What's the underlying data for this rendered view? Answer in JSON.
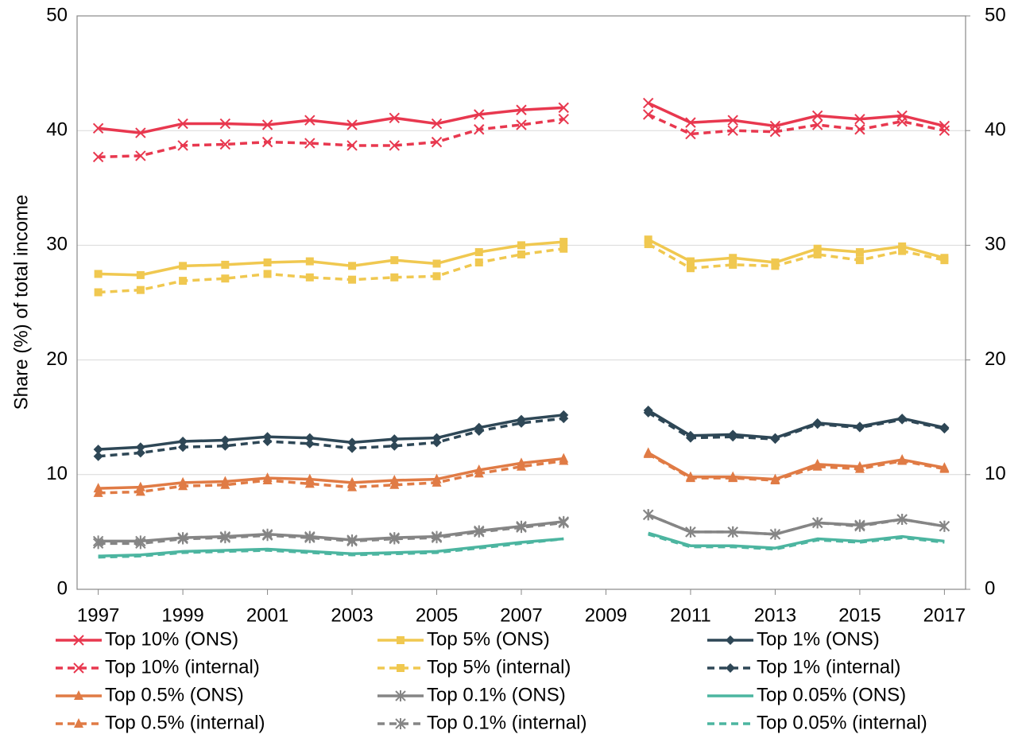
{
  "chart_data": {
    "type": "line",
    "y_label": "Share (%) of total income",
    "x": [
      1997,
      1998,
      1999,
      2000,
      2001,
      2002,
      2003,
      2004,
      2005,
      2006,
      2007,
      2008,
      2009,
      2010,
      2011,
      2012,
      2013,
      2014,
      2015,
      2016,
      2017
    ],
    "xlim": [
      1996.5,
      2017.5
    ],
    "xticks": [
      1997,
      1999,
      2001,
      2003,
      2005,
      2007,
      2009,
      2011,
      2013,
      2015,
      2017
    ],
    "ylim": [
      0,
      50
    ],
    "yticks": [
      0,
      10,
      20,
      30,
      40,
      50
    ],
    "y2lim": [
      0,
      50
    ],
    "y2ticks": [
      0,
      10,
      20,
      30,
      40,
      50
    ],
    "grid": true,
    "legend": "bottom",
    "series": [
      {
        "name": "Top 10% (ONS)",
        "color": "#e8384f",
        "dashed": false,
        "marker": "x",
        "values": [
          40.2,
          39.8,
          40.6,
          40.6,
          40.5,
          40.9,
          40.5,
          41.1,
          40.6,
          41.4,
          41.8,
          42.0,
          null,
          42.4,
          40.7,
          40.9,
          40.4,
          41.3,
          41.0,
          41.3,
          40.4
        ]
      },
      {
        "name": "Top 10% (internal)",
        "color": "#e8384f",
        "dashed": true,
        "marker": "x",
        "values": [
          37.7,
          37.8,
          38.7,
          38.8,
          39.0,
          38.9,
          38.7,
          38.7,
          39.0,
          40.1,
          40.5,
          41.0,
          null,
          41.4,
          39.7,
          40.0,
          39.9,
          40.5,
          40.1,
          40.8,
          40.0
        ]
      },
      {
        "name": "Top 5% (ONS)",
        "color": "#f0c850",
        "dashed": false,
        "marker": "square",
        "values": [
          27.5,
          27.4,
          28.2,
          28.3,
          28.5,
          28.6,
          28.2,
          28.7,
          28.4,
          29.4,
          30.0,
          30.3,
          null,
          30.5,
          28.6,
          28.9,
          28.5,
          29.7,
          29.4,
          29.9,
          28.9
        ]
      },
      {
        "name": "Top 5% (internal)",
        "color": "#f0c850",
        "dashed": true,
        "marker": "square",
        "values": [
          25.9,
          26.1,
          26.9,
          27.1,
          27.5,
          27.2,
          27.0,
          27.2,
          27.3,
          28.5,
          29.2,
          29.7,
          null,
          30.1,
          28.0,
          28.3,
          28.2,
          29.2,
          28.7,
          29.5,
          28.7
        ]
      },
      {
        "name": "Top 1% (ONS)",
        "color": "#2e4756",
        "dashed": false,
        "marker": "diamond",
        "values": [
          12.2,
          12.4,
          12.9,
          13.0,
          13.3,
          13.2,
          12.8,
          13.1,
          13.2,
          14.1,
          14.8,
          15.2,
          null,
          15.6,
          13.4,
          13.5,
          13.2,
          14.5,
          14.2,
          14.9,
          14.1
        ]
      },
      {
        "name": "Top 1% (internal)",
        "color": "#2e4756",
        "dashed": true,
        "marker": "diamond",
        "values": [
          11.6,
          11.9,
          12.4,
          12.5,
          12.9,
          12.7,
          12.3,
          12.5,
          12.8,
          13.8,
          14.5,
          14.9,
          null,
          15.4,
          13.2,
          13.3,
          13.1,
          14.4,
          14.1,
          14.8,
          14.0
        ]
      },
      {
        "name": "Top 0.5% (ONS)",
        "color": "#e07b45",
        "dashed": false,
        "marker": "triangle",
        "values": [
          8.8,
          8.9,
          9.3,
          9.4,
          9.7,
          9.6,
          9.3,
          9.5,
          9.6,
          10.4,
          11.0,
          11.4,
          null,
          11.9,
          9.8,
          9.8,
          9.6,
          10.9,
          10.7,
          11.3,
          10.6
        ]
      },
      {
        "name": "Top 0.5% (internal)",
        "color": "#e07b45",
        "dashed": true,
        "marker": "triangle",
        "values": [
          8.4,
          8.5,
          9.0,
          9.1,
          9.5,
          9.2,
          8.9,
          9.1,
          9.3,
          10.1,
          10.7,
          11.2,
          null,
          11.8,
          9.7,
          9.7,
          9.5,
          10.7,
          10.5,
          11.2,
          10.5
        ]
      },
      {
        "name": "Top 0.1% (ONS)",
        "color": "#858585",
        "dashed": false,
        "marker": "star",
        "values": [
          4.2,
          4.2,
          4.5,
          4.6,
          4.8,
          4.6,
          4.3,
          4.5,
          4.6,
          5.1,
          5.5,
          5.9,
          null,
          6.5,
          5.0,
          5.0,
          4.8,
          5.8,
          5.6,
          6.1,
          5.5
        ]
      },
      {
        "name": "Top 0.1% (internal)",
        "color": "#858585",
        "dashed": true,
        "marker": "star",
        "values": [
          4.0,
          4.0,
          4.4,
          4.5,
          4.7,
          4.5,
          4.2,
          4.4,
          4.5,
          5.0,
          5.4,
          5.8,
          null,
          6.5,
          5.0,
          5.0,
          4.8,
          5.8,
          5.5,
          6.1,
          5.5
        ]
      },
      {
        "name": "Top 0.05% (ONS)",
        "color": "#4cb5a0",
        "dashed": false,
        "marker": "none",
        "values": [
          2.9,
          3.0,
          3.3,
          3.4,
          3.5,
          3.3,
          3.1,
          3.2,
          3.3,
          3.7,
          4.1,
          4.4,
          null,
          4.9,
          3.8,
          3.8,
          3.6,
          4.4,
          4.2,
          4.6,
          4.2
        ]
      },
      {
        "name": "Top 0.05% (internal)",
        "color": "#4cb5a0",
        "dashed": true,
        "marker": "none",
        "values": [
          2.8,
          2.9,
          3.2,
          3.3,
          3.4,
          3.2,
          3.0,
          3.1,
          3.2,
          3.6,
          4.0,
          4.4,
          null,
          4.8,
          3.7,
          3.7,
          3.5,
          4.3,
          4.1,
          4.5,
          4.1
        ]
      }
    ]
  }
}
